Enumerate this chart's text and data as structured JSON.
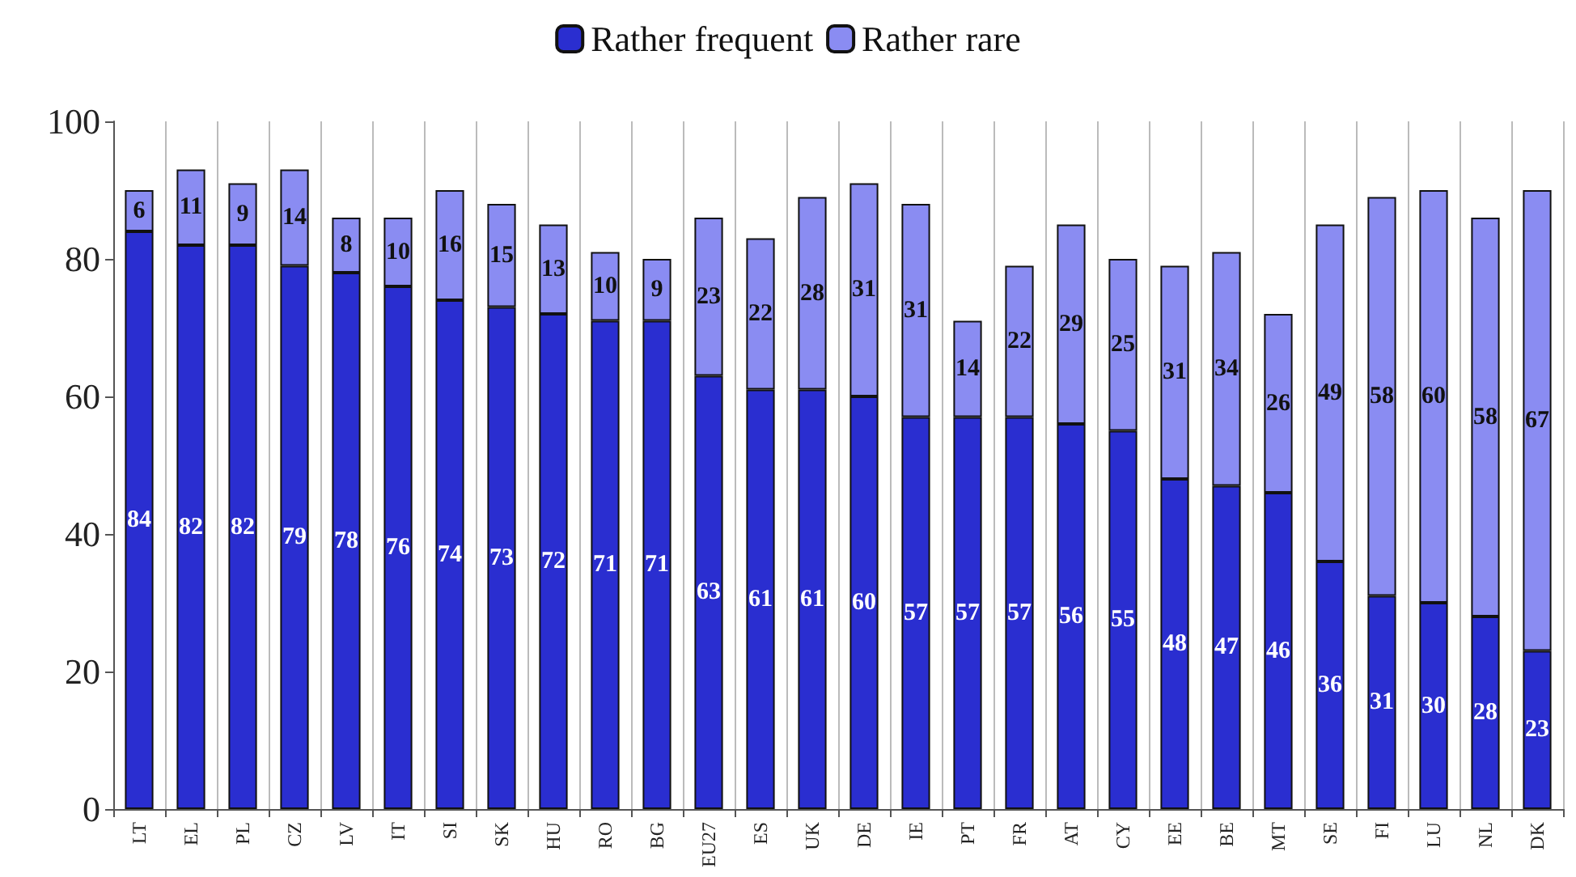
{
  "chart_data": {
    "type": "bar",
    "stacked": true,
    "data_labels": true,
    "legend": "top",
    "grid": "x",
    "categories": [
      "LT",
      "EL",
      "PL",
      "CZ",
      "LV",
      "IT",
      "SI",
      "SK",
      "HU",
      "RO",
      "BG",
      "EU27",
      "ES",
      "UK",
      "DE",
      "IE",
      "PT",
      "FR",
      "AT",
      "CY",
      "EE",
      "BE",
      "MT",
      "SE",
      "FI",
      "LU",
      "NL",
      "DK"
    ],
    "series": [
      {
        "name": "Rather frequent",
        "color": "#2a2ed0",
        "values": [
          84,
          82,
          82,
          79,
          78,
          76,
          74,
          73,
          72,
          71,
          71,
          63,
          61,
          61,
          60,
          57,
          57,
          57,
          56,
          55,
          48,
          47,
          46,
          36,
          31,
          30,
          28,
          23
        ]
      },
      {
        "name": "Rather rare",
        "color": "#8a8cf2",
        "values": [
          6,
          11,
          9,
          14,
          8,
          10,
          16,
          15,
          13,
          10,
          9,
          23,
          22,
          28,
          31,
          31,
          14,
          22,
          29,
          25,
          31,
          34,
          26,
          49,
          58,
          60,
          58,
          67
        ]
      }
    ],
    "ylim": [
      0,
      100
    ],
    "yticks": [
      0,
      20,
      40,
      60,
      80,
      100
    ]
  }
}
